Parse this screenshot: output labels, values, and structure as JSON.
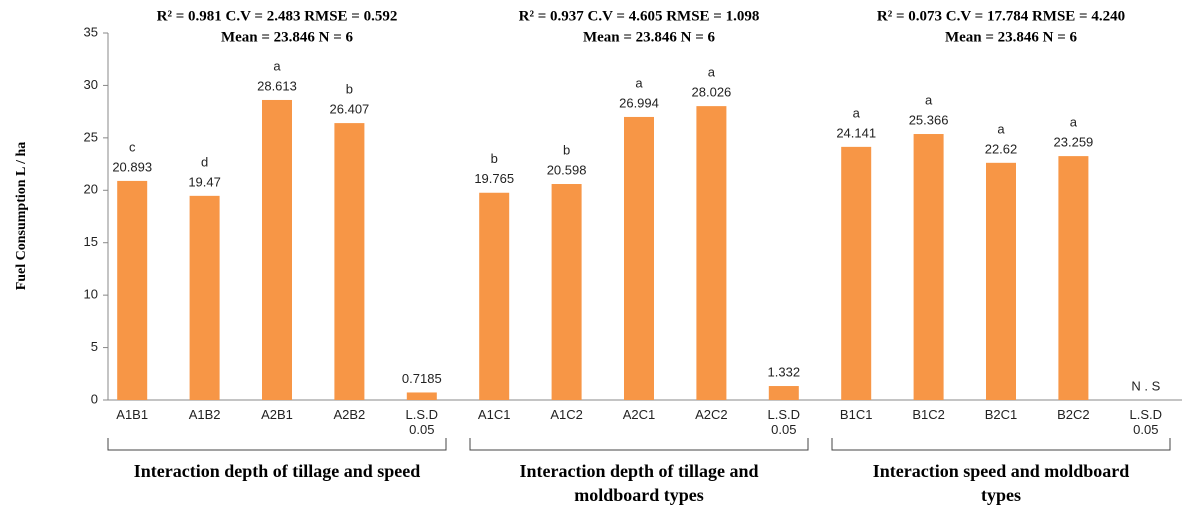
{
  "chart_data": {
    "type": "bar",
    "y_label": "Fuel Consumption L / ha",
    "categories": [
      "A1B1",
      "A1B2",
      "A2B1",
      "A2B2",
      "L.S.D 0.05",
      "A1C1",
      "A1C2",
      "A2C1",
      "A2C2",
      "L.S.D 0.05",
      "B1C1",
      "B1C2",
      "B2C1",
      "B2C2",
      "L.S.D 0.05"
    ],
    "values": [
      20.893,
      19.47,
      28.613,
      26.407,
      0.7185,
      19.765,
      20.598,
      26.994,
      28.026,
      1.332,
      24.141,
      25.366,
      22.62,
      23.259,
      null
    ],
    "value_labels": [
      null,
      null,
      null,
      null,
      null,
      null,
      null,
      null,
      null,
      null,
      null,
      null,
      null,
      null,
      "N . S"
    ],
    "letters": [
      "c",
      "d",
      "a",
      "b",
      null,
      "b",
      "b",
      "a",
      "a",
      null,
      "a",
      "a",
      "a",
      "a",
      null
    ],
    "groups": [
      {
        "label": "Interaction depth of tillage and speed",
        "stats": [
          "R² = 0.981 C.V = 2.483  RMSE = 0.592",
          "Mean = 23.846   N = 6"
        ]
      },
      {
        "label": "Interaction depth of tillage and moldboard types",
        "stats": [
          "R² = 0.937  C.V = 4.605  RMSE = 1.098",
          "Mean = 23.846   N = 6"
        ]
      },
      {
        "label": "Interaction speed and moldboard types",
        "stats": [
          "R² = 0.073  C.V = 17.784  RMSE = 4.240",
          "Mean = 23.846   N = 6"
        ]
      }
    ],
    "color": "#f79646",
    "ylim": [
      0,
      35
    ],
    "yticks": [
      0,
      5,
      10,
      15,
      20,
      25,
      30,
      35
    ],
    "grid": false
  }
}
